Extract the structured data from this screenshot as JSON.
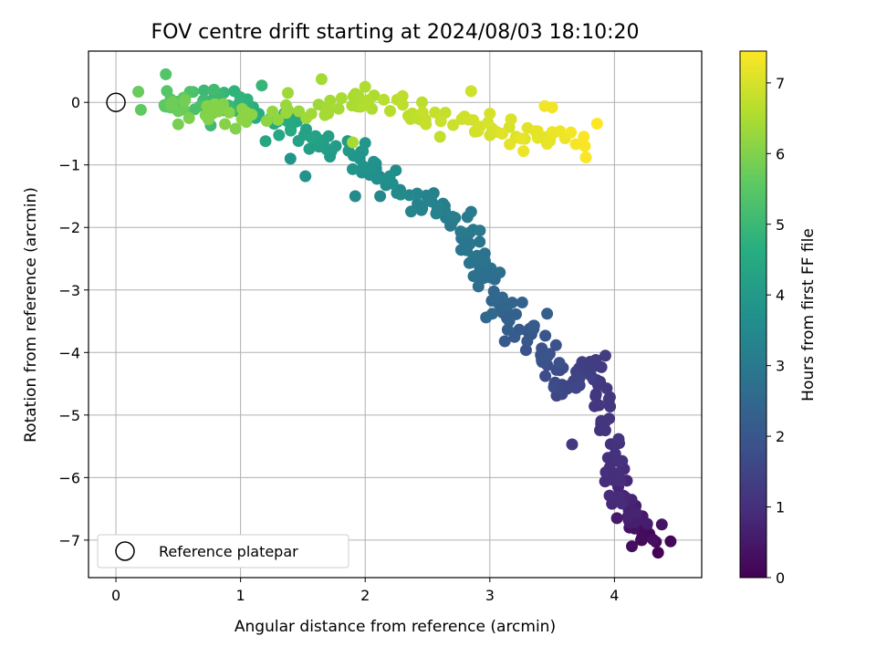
{
  "chart_data": {
    "type": "scatter",
    "title": "FOV centre drift starting at 2024/08/03 18:10:20",
    "xlabel": "Angular distance from reference (arcmin)",
    "ylabel": "Rotation from reference (arcmin)",
    "colorbar_label": "Hours from first FF file",
    "colormap": "viridis",
    "xlim": [
      -0.22,
      4.7
    ],
    "ylim": [
      -7.6,
      0.82
    ],
    "clim": [
      0,
      7.45
    ],
    "x_ticks": [
      0,
      1,
      2,
      3,
      4
    ],
    "y_ticks": [
      0,
      -1,
      -2,
      -3,
      -4,
      -5,
      -6,
      -7
    ],
    "colorbar_ticks": [
      0,
      1,
      2,
      3,
      4,
      5,
      6,
      7
    ],
    "grid": true,
    "legend": {
      "position": "lower-left",
      "label": "Reference platepar",
      "marker": "open-circle"
    },
    "reference_point": {
      "x": 0,
      "y": 0
    },
    "anchors": [
      [
        4.27,
        -6.95,
        0.1
      ],
      [
        4.2,
        -6.75,
        0.5
      ],
      [
        4.05,
        -6.35,
        0.9
      ],
      [
        3.85,
        -4.1,
        1.3
      ],
      [
        3.6,
        -4.6,
        1.6
      ],
      [
        3.35,
        -3.75,
        2.0
      ],
      [
        3.1,
        -3.3,
        2.4
      ],
      [
        2.9,
        -2.5,
        2.8
      ],
      [
        2.7,
        -1.8,
        3.1
      ],
      [
        2.35,
        -1.55,
        3.4
      ],
      [
        2.0,
        -0.95,
        3.8
      ],
      [
        1.6,
        -0.6,
        4.2
      ],
      [
        1.2,
        -0.2,
        4.6
      ],
      [
        0.8,
        0.05,
        5.0
      ],
      [
        0.45,
        0.1,
        5.5
      ],
      [
        0.5,
        -0.15,
        5.9
      ],
      [
        1.25,
        -0.2,
        6.2
      ],
      [
        1.95,
        0.0,
        6.5
      ],
      [
        2.55,
        -0.2,
        6.8
      ],
      [
        3.3,
        -0.5,
        7.1
      ],
      [
        3.75,
        -0.6,
        7.4
      ]
    ],
    "points": [
      {
        "x": 4.28,
        "y": -6.9,
        "t": 0.1
      },
      {
        "x": 4.35,
        "y": -7.2,
        "t": 0.05
      },
      {
        "x": 4.45,
        "y": -7.02,
        "t": 0.15
      },
      {
        "x": 4.22,
        "y": -7.0,
        "t": 0.2
      },
      {
        "x": 4.12,
        "y": -6.8,
        "t": 0.35
      },
      {
        "x": 4.14,
        "y": -7.1,
        "t": 0.3
      },
      {
        "x": 4.38,
        "y": -6.75,
        "t": 0.4
      },
      {
        "x": 4.17,
        "y": -6.45,
        "t": 0.6
      },
      {
        "x": 4.03,
        "y": -6.15,
        "t": 0.75
      },
      {
        "x": 4.1,
        "y": -6.05,
        "t": 0.8
      },
      {
        "x": 3.98,
        "y": -6.42,
        "t": 0.85
      },
      {
        "x": 4.02,
        "y": -6.65,
        "t": 0.5
      },
      {
        "x": 3.66,
        "y": -5.47,
        "t": 1.2
      },
      {
        "x": 3.85,
        "y": -4.12,
        "t": 1.3
      },
      {
        "x": 3.57,
        "y": -4.6,
        "t": 1.6
      },
      {
        "x": 3.62,
        "y": -4.58,
        "t": 1.55
      },
      {
        "x": 3.42,
        "y": -4.15,
        "t": 1.85
      },
      {
        "x": 3.48,
        "y": -4.02,
        "t": 1.9
      },
      {
        "x": 3.46,
        "y": -3.38,
        "t": 2.2
      },
      {
        "x": 3.3,
        "y": -3.82,
        "t": 2.05
      },
      {
        "x": 3.12,
        "y": -3.82,
        "t": 2.1
      },
      {
        "x": 3.26,
        "y": -3.2,
        "t": 2.35
      },
      {
        "x": 3.1,
        "y": -3.12,
        "t": 2.45
      },
      {
        "x": 2.97,
        "y": -3.44,
        "t": 2.5
      },
      {
        "x": 3.02,
        "y": -3.38,
        "t": 2.5
      },
      {
        "x": 3.08,
        "y": -2.72,
        "t": 2.75
      },
      {
        "x": 2.87,
        "y": -2.78,
        "t": 2.8
      },
      {
        "x": 2.77,
        "y": -2.36,
        "t": 2.9
      },
      {
        "x": 2.92,
        "y": -2.05,
        "t": 3.0
      },
      {
        "x": 2.85,
        "y": -1.75,
        "t": 3.1
      },
      {
        "x": 2.7,
        "y": -1.9,
        "t": 3.05
      },
      {
        "x": 2.55,
        "y": -1.45,
        "t": 3.25
      },
      {
        "x": 2.42,
        "y": -1.62,
        "t": 3.3
      },
      {
        "x": 2.28,
        "y": -1.4,
        "t": 3.4
      },
      {
        "x": 2.12,
        "y": -1.5,
        "t": 3.45
      },
      {
        "x": 1.92,
        "y": -1.5,
        "t": 3.5
      },
      {
        "x": 2.05,
        "y": -1.08,
        "t": 3.7
      },
      {
        "x": 2.0,
        "y": -0.65,
        "t": 3.9
      },
      {
        "x": 1.73,
        "y": -0.78,
        "t": 4.0
      },
      {
        "x": 1.52,
        "y": -1.18,
        "t": 3.8
      },
      {
        "x": 1.4,
        "y": -0.9,
        "t": 3.85
      },
      {
        "x": 1.62,
        "y": -0.6,
        "t": 4.2
      },
      {
        "x": 1.2,
        "y": -0.62,
        "t": 4.4
      },
      {
        "x": 1.12,
        "y": -0.25,
        "t": 4.55
      },
      {
        "x": 0.95,
        "y": 0.18,
        "t": 4.8
      },
      {
        "x": 1.17,
        "y": 0.27,
        "t": 4.9
      },
      {
        "x": 0.76,
        "y": -0.37,
        "t": 5.05
      },
      {
        "x": 0.7,
        "y": 0.03,
        "t": 5.1
      },
      {
        "x": 0.4,
        "y": 0.45,
        "t": 5.4
      },
      {
        "x": 0.2,
        "y": -0.12,
        "t": 5.6
      },
      {
        "x": 0.18,
        "y": 0.17,
        "t": 5.7
      },
      {
        "x": 0.5,
        "y": -0.35,
        "t": 5.9
      },
      {
        "x": 0.96,
        "y": -0.42,
        "t": 6.0
      },
      {
        "x": 1.3,
        "y": -0.28,
        "t": 6.2
      },
      {
        "x": 1.38,
        "y": 0.15,
        "t": 6.35
      },
      {
        "x": 1.65,
        "y": 0.37,
        "t": 6.4
      },
      {
        "x": 1.9,
        "y": -0.64,
        "t": 6.45
      },
      {
        "x": 2.0,
        "y": 0.25,
        "t": 6.55
      },
      {
        "x": 2.3,
        "y": 0.1,
        "t": 6.7
      },
      {
        "x": 2.6,
        "y": -0.55,
        "t": 6.75
      },
      {
        "x": 2.85,
        "y": 0.18,
        "t": 6.9
      },
      {
        "x": 3.0,
        "y": -0.18,
        "t": 7.0
      },
      {
        "x": 3.17,
        "y": -0.27,
        "t": 7.05
      },
      {
        "x": 3.1,
        "y": -0.5,
        "t": 7.1
      },
      {
        "x": 3.16,
        "y": -0.67,
        "t": 7.15
      },
      {
        "x": 3.25,
        "y": -0.58,
        "t": 7.2
      },
      {
        "x": 3.27,
        "y": -0.78,
        "t": 7.25
      },
      {
        "x": 3.44,
        "y": -0.06,
        "t": 7.3
      },
      {
        "x": 3.5,
        "y": -0.08,
        "t": 7.32
      },
      {
        "x": 3.65,
        "y": -0.48,
        "t": 7.35
      },
      {
        "x": 3.77,
        "y": -0.88,
        "t": 7.4
      },
      {
        "x": 3.86,
        "y": -0.34,
        "t": 7.45
      }
    ]
  }
}
